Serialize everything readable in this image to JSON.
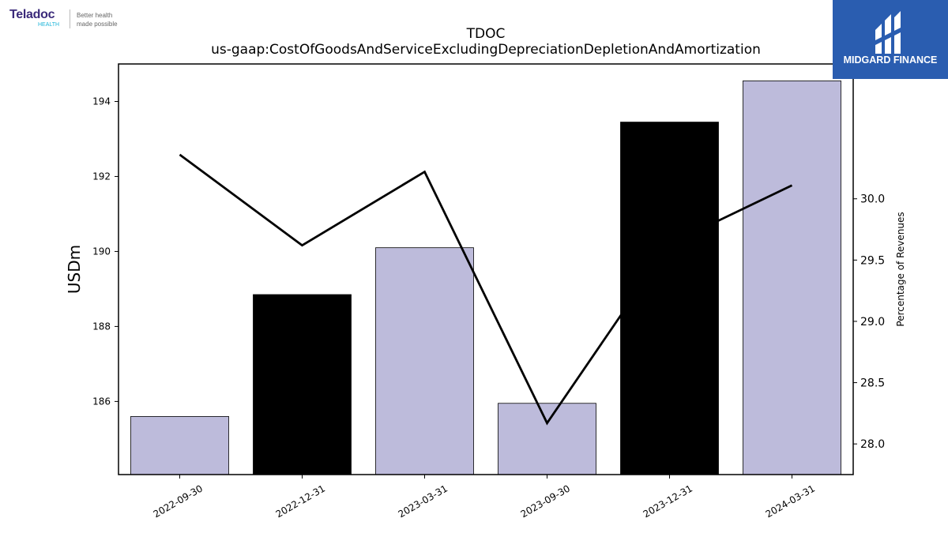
{
  "branding": {
    "teladoc": {
      "name": "Teladoc",
      "sub": "HEALTH",
      "tagline": [
        "Better health",
        "made possible"
      ]
    },
    "midgard": {
      "name": "MIDGARD FINANCE",
      "color": "#2a5db0"
    }
  },
  "chart_data": {
    "type": "bar",
    "title": "TDOC",
    "subtitle": "us-gaap:CostOfGoodsAndServiceExcludingDepreciationDepletionAndAmortization",
    "ylabel": "USDm",
    "y2label": "Percentage of Revenues",
    "categories": [
      "2022-09-30",
      "2022-12-31",
      "2023-03-31",
      "2023-09-30",
      "2023-12-31",
      "2024-03-31"
    ],
    "series": [
      {
        "kind": "bar",
        "axis": "left",
        "values": [
          185.6,
          188.85,
          190.1,
          185.95,
          193.45,
          194.55
        ],
        "colors": [
          "#bdbbdb",
          "#000000",
          "#bdbbdb",
          "#bdbbdb",
          "#000000",
          "#bdbbdb"
        ]
      },
      {
        "kind": "line",
        "axis": "right",
        "color": "#000000",
        "values": [
          30.36,
          29.62,
          30.22,
          28.17,
          29.63,
          30.11
        ]
      }
    ],
    "ylim": [
      184.05,
      195.0
    ],
    "yticks": [
      186,
      188,
      190,
      192,
      194
    ],
    "y2lim": [
      27.75,
      31.1
    ],
    "y2ticks": [
      "28.0",
      "28.5",
      "29.0",
      "29.5",
      "30.0"
    ],
    "grid": false,
    "legend": "none"
  }
}
